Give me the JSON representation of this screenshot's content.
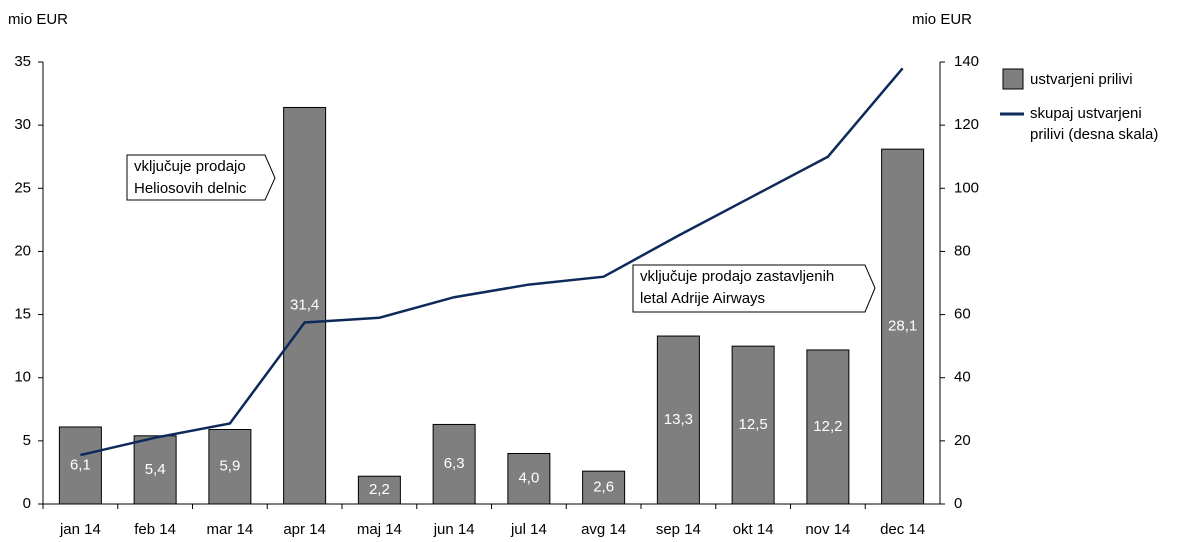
{
  "chart_data": {
    "type": "bar_line",
    "ylabel": "mio EUR",
    "y2label": "mio EUR",
    "categories": [
      "jan 14",
      "feb 14",
      "mar 14",
      "apr 14",
      "maj 14",
      "jun 14",
      "jul 14",
      "avg 14",
      "sep 14",
      "okt 14",
      "nov 14",
      "dec 14"
    ],
    "series": [
      {
        "name": "ustvarjeni prilivi",
        "type": "bar",
        "color": "#7f7f7f",
        "values": [
          6.1,
          5.4,
          5.9,
          31.4,
          2.2,
          6.3,
          4.0,
          2.6,
          13.3,
          12.5,
          12.2,
          28.1
        ],
        "value_labels": [
          "6,1",
          "5,4",
          "5,9",
          "31,4",
          "2,2",
          "6,3",
          "4,0",
          "2,6",
          "13,3",
          "12,5",
          "12,2",
          "28,1"
        ]
      },
      {
        "name": "skupaj ustvarjeni prilivi (desna skala)",
        "type": "line",
        "axis": "y2",
        "color": "#0d2a5a",
        "values": [
          15.5,
          21,
          25.5,
          57.5,
          59,
          65.5,
          69.5,
          72,
          85,
          97.5,
          110,
          138
        ]
      }
    ],
    "ylim": [
      0,
      35
    ],
    "yticks": [
      0,
      5,
      10,
      15,
      20,
      25,
      30,
      35
    ],
    "y2lim": [
      0,
      140
    ],
    "y2ticks": [
      0,
      20,
      40,
      60,
      80,
      100,
      120,
      140
    ],
    "annotations": [
      {
        "lines": [
          "vključuje prodajo",
          "Heliosovih delnic"
        ]
      },
      {
        "lines": [
          "vključuje prodajo zastavljenih",
          "letal Adrije Airways"
        ]
      }
    ],
    "legend": "right"
  }
}
